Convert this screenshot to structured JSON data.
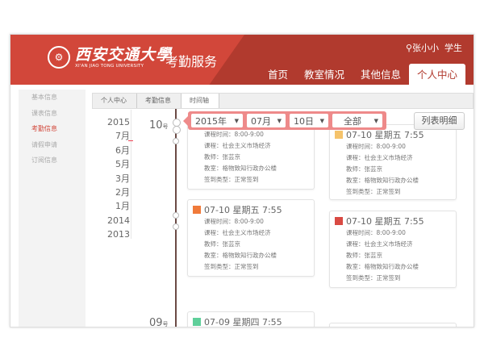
{
  "header": {
    "logo_text": "西安交通大學",
    "logo_en": "XI'AN JIAO TONG UNIVERSITY",
    "app_title": "考勤服务",
    "user_name": "张小小",
    "user_role": "学生",
    "nav": [
      {
        "label": "首页"
      },
      {
        "label": "教室情况"
      },
      {
        "label": "其他信息"
      },
      {
        "label": "个人中心"
      }
    ]
  },
  "sidebar": {
    "items": [
      {
        "label": "基本信息"
      },
      {
        "label": "课表信息"
      },
      {
        "label": "考勤信息"
      },
      {
        "label": "请假申请"
      },
      {
        "label": "订阅信息"
      }
    ]
  },
  "breadcrumb": [
    {
      "label": "个人中心"
    },
    {
      "label": "考勤信息"
    },
    {
      "label": "时间轴"
    }
  ],
  "years": [
    "2015",
    "7月",
    "6月",
    "5月",
    "3月",
    "2月",
    "1月",
    "2014",
    "2013"
  ],
  "filter": {
    "year": "2015年",
    "month": "07月",
    "day": "10日",
    "type": "全部"
  },
  "list_button": "列表明细",
  "days": [
    {
      "num": "10",
      "unit": "号"
    },
    {
      "num": "09",
      "unit": "号"
    }
  ],
  "labels": {
    "time": "课程时间：",
    "course": "课程：",
    "teacher": "教师：",
    "room": "教室：",
    "type": "签到类型："
  },
  "cards": [
    {
      "title": "",
      "icon_color": "",
      "time": "8:00-9:00",
      "course": "社会主义市场经济",
      "teacher": "张芸京",
      "room": "格物致知行政办公楼",
      "type": "正常签到"
    },
    {
      "title": "07-10 星期五 7:55",
      "icon_color": "#f5c36b",
      "time": "8:00-9:00",
      "course": "社会主义市场经济",
      "teacher": "张芸京",
      "room": "格物致知行政办公楼",
      "type": "正常签到"
    },
    {
      "title": "07-10 星期五 7:55",
      "icon_color": "#f07a3a",
      "time": "8:00-9:00",
      "course": "社会主义市场经济",
      "teacher": "张芸京",
      "room": "格物致知行政办公楼",
      "type": "正常签到"
    },
    {
      "title": "07-10 星期五 7:55",
      "icon_color": "#d94a43",
      "time": "8:00-9:00",
      "course": "社会主义市场经济",
      "teacher": "张芸京",
      "room": "格物致知行政办公楼",
      "type": "正常签到"
    },
    {
      "title": "07-09 星期四 7:55",
      "icon_color": "#5fcf9a"
    }
  ]
}
